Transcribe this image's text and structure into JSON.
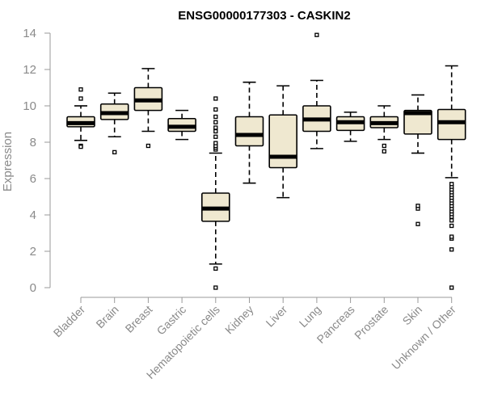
{
  "chart_data": {
    "type": "boxplot",
    "title": "ENSG00000177303 - CASKIN2",
    "ylabel": "Expression",
    "xlabel": "",
    "ylim": [
      0,
      14
    ],
    "yticks": [
      0,
      2,
      4,
      6,
      8,
      10,
      12,
      14
    ],
    "colors": {
      "box_fill": "#efe8d0",
      "box_stroke": "#000000",
      "median": "#000000",
      "axis": "#9a9a9a",
      "label": "#8a8a8a"
    },
    "categories": [
      "Bladder",
      "Brain",
      "Breast",
      "Gastric",
      "Hematopoietic cells",
      "Kidney",
      "Liver",
      "Lung",
      "Pancreas",
      "Prostate",
      "Skin",
      "Unknown / Other"
    ],
    "boxes": [
      {
        "name": "Bladder",
        "whisker_low": 8.1,
        "q1": 8.85,
        "median": 9.05,
        "q3": 9.4,
        "whisker_high": 10.0,
        "outliers": [
          7.8,
          7.75,
          10.4,
          10.9
        ]
      },
      {
        "name": "Brain",
        "whisker_low": 8.3,
        "q1": 9.25,
        "median": 9.6,
        "q3": 10.1,
        "whisker_high": 10.7,
        "outliers": [
          7.45
        ]
      },
      {
        "name": "Breast",
        "whisker_low": 8.6,
        "q1": 9.75,
        "median": 10.3,
        "q3": 11.0,
        "whisker_high": 12.05,
        "outliers": [
          7.8
        ]
      },
      {
        "name": "Gastric",
        "whisker_low": 8.15,
        "q1": 8.6,
        "median": 8.85,
        "q3": 9.3,
        "whisker_high": 9.75,
        "outliers": []
      },
      {
        "name": "Hematopoietic cells",
        "whisker_low": 1.3,
        "q1": 3.65,
        "median": 4.35,
        "q3": 5.2,
        "whisker_high": 7.4,
        "outliers": [
          0.0,
          1.05,
          7.6,
          7.7,
          7.8,
          7.95,
          8.3,
          8.6,
          8.8,
          9.1,
          9.4,
          9.8,
          10.4
        ]
      },
      {
        "name": "Kidney",
        "whisker_low": 5.75,
        "q1": 7.8,
        "median": 8.4,
        "q3": 9.4,
        "whisker_high": 11.3,
        "outliers": []
      },
      {
        "name": "Liver",
        "whisker_low": 4.95,
        "q1": 6.6,
        "median": 7.2,
        "q3": 9.5,
        "whisker_high": 11.1,
        "outliers": []
      },
      {
        "name": "Lung",
        "whisker_low": 7.65,
        "q1": 8.6,
        "median": 9.25,
        "q3": 10.0,
        "whisker_high": 11.4,
        "outliers": [
          13.9
        ]
      },
      {
        "name": "Pancreas",
        "whisker_low": 8.05,
        "q1": 8.65,
        "median": 9.1,
        "q3": 9.4,
        "whisker_high": 9.65,
        "outliers": []
      },
      {
        "name": "Prostate",
        "whisker_low": 8.15,
        "q1": 8.8,
        "median": 9.05,
        "q3": 9.4,
        "whisker_high": 10.0,
        "outliers": [
          7.5,
          7.8
        ]
      },
      {
        "name": "Skin",
        "whisker_low": 7.4,
        "q1": 8.45,
        "median": 9.6,
        "q3": 9.75,
        "whisker_high": 10.6,
        "outliers": [
          3.5,
          4.35,
          4.5
        ]
      },
      {
        "name": "Unknown / Other",
        "whisker_low": 6.05,
        "q1": 8.15,
        "median": 9.1,
        "q3": 9.8,
        "whisker_high": 12.2,
        "outliers": [
          0.0,
          2.1,
          2.7,
          2.8,
          3.4,
          3.7,
          3.9,
          4.05,
          4.2,
          4.35,
          4.5,
          4.65,
          4.8,
          4.95,
          5.1,
          5.25,
          5.4,
          5.55,
          5.7
        ]
      }
    ]
  }
}
